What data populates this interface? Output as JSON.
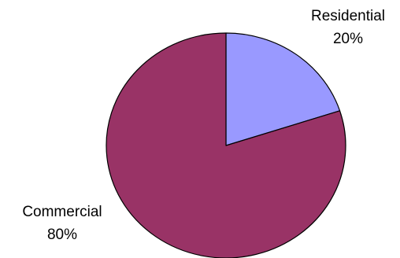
{
  "chart_data": {
    "type": "pie",
    "title": "",
    "slices": [
      {
        "label": "Residential",
        "percent_label": "20%",
        "value": 20,
        "color": "#9999ff"
      },
      {
        "label": "Commercial",
        "percent_label": "80%",
        "value": 80,
        "color": "#993366"
      }
    ],
    "start_angle_deg": 0,
    "direction": "clockwise",
    "legend": "none",
    "outline_color": "#000000"
  }
}
